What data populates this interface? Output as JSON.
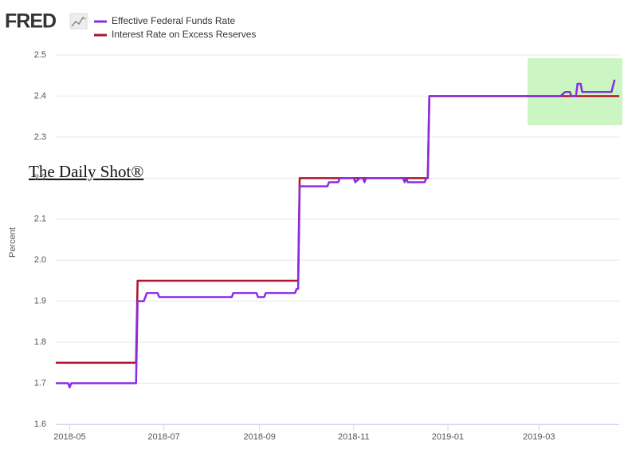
{
  "chart_data": {
    "type": "line",
    "logo": "FRED",
    "watermark": "The Daily Shot®",
    "y_label": "Percent",
    "xlim": [
      "2018-04-22",
      "2019-04-22"
    ],
    "xticks": [
      "2018-05",
      "2018-07",
      "2018-09",
      "2018-11",
      "2019-01",
      "2019-03"
    ],
    "ylim": [
      1.6,
      2.5
    ],
    "yticks": [
      1.6,
      1.7,
      1.8,
      1.9,
      {
        "value": 2,
        "label": "2.0"
      },
      2.1,
      2.2,
      2.3,
      2.4,
      2.5
    ],
    "grid": true,
    "series": [
      {
        "name": "Effective Federal Funds Rate",
        "color": "#8a2be2",
        "x": [
          "2018-04-22",
          "2018-04-30",
          "2018-05-01",
          "2018-05-02",
          "2018-06-13",
          "2018-06-14",
          "2018-06-18",
          "2018-06-20",
          "2018-06-27",
          "2018-06-28",
          "2018-08-14",
          "2018-08-15",
          "2018-08-30",
          "2018-08-31",
          "2018-09-04",
          "2018-09-05",
          "2018-09-24",
          "2018-09-25",
          "2018-09-26",
          "2018-09-27",
          "2018-10-15",
          "2018-10-16",
          "2018-10-22",
          "2018-10-23",
          "2018-11-01",
          "2018-11-02",
          "2018-11-05",
          "2018-11-07",
          "2018-11-08",
          "2018-11-09",
          "2018-12-03",
          "2018-12-04",
          "2018-12-05",
          "2018-12-06",
          "2018-12-17",
          "2018-12-18",
          "2018-12-19",
          "2018-12-20",
          "2019-03-15",
          "2019-03-18",
          "2019-03-21",
          "2019-03-22",
          "2019-03-25",
          "2019-03-26",
          "2019-03-28",
          "2019-03-29",
          "2019-04-17",
          "2019-04-19"
        ],
        "values": [
          1.7,
          1.7,
          1.69,
          1.7,
          1.7,
          1.9,
          1.9,
          1.92,
          1.92,
          1.91,
          1.91,
          1.92,
          1.92,
          1.91,
          1.91,
          1.92,
          1.92,
          1.93,
          1.93,
          2.18,
          2.18,
          2.19,
          2.19,
          2.2,
          2.2,
          2.19,
          2.2,
          2.2,
          2.19,
          2.2,
          2.2,
          2.19,
          2.2,
          2.19,
          2.19,
          2.2,
          2.2,
          2.4,
          2.4,
          2.41,
          2.41,
          2.4,
          2.4,
          2.43,
          2.43,
          2.41,
          2.41,
          2.44
        ]
      },
      {
        "name": "Interest Rate on Excess Reserves",
        "color": "#b0122f",
        "x": [
          "2018-04-22",
          "2018-06-13",
          "2018-06-14",
          "2018-09-26",
          "2018-09-27",
          "2018-12-19",
          "2018-12-20",
          "2019-04-22"
        ],
        "values": [
          1.75,
          1.75,
          1.95,
          1.95,
          2.2,
          2.2,
          2.4,
          2.4
        ]
      }
    ]
  }
}
